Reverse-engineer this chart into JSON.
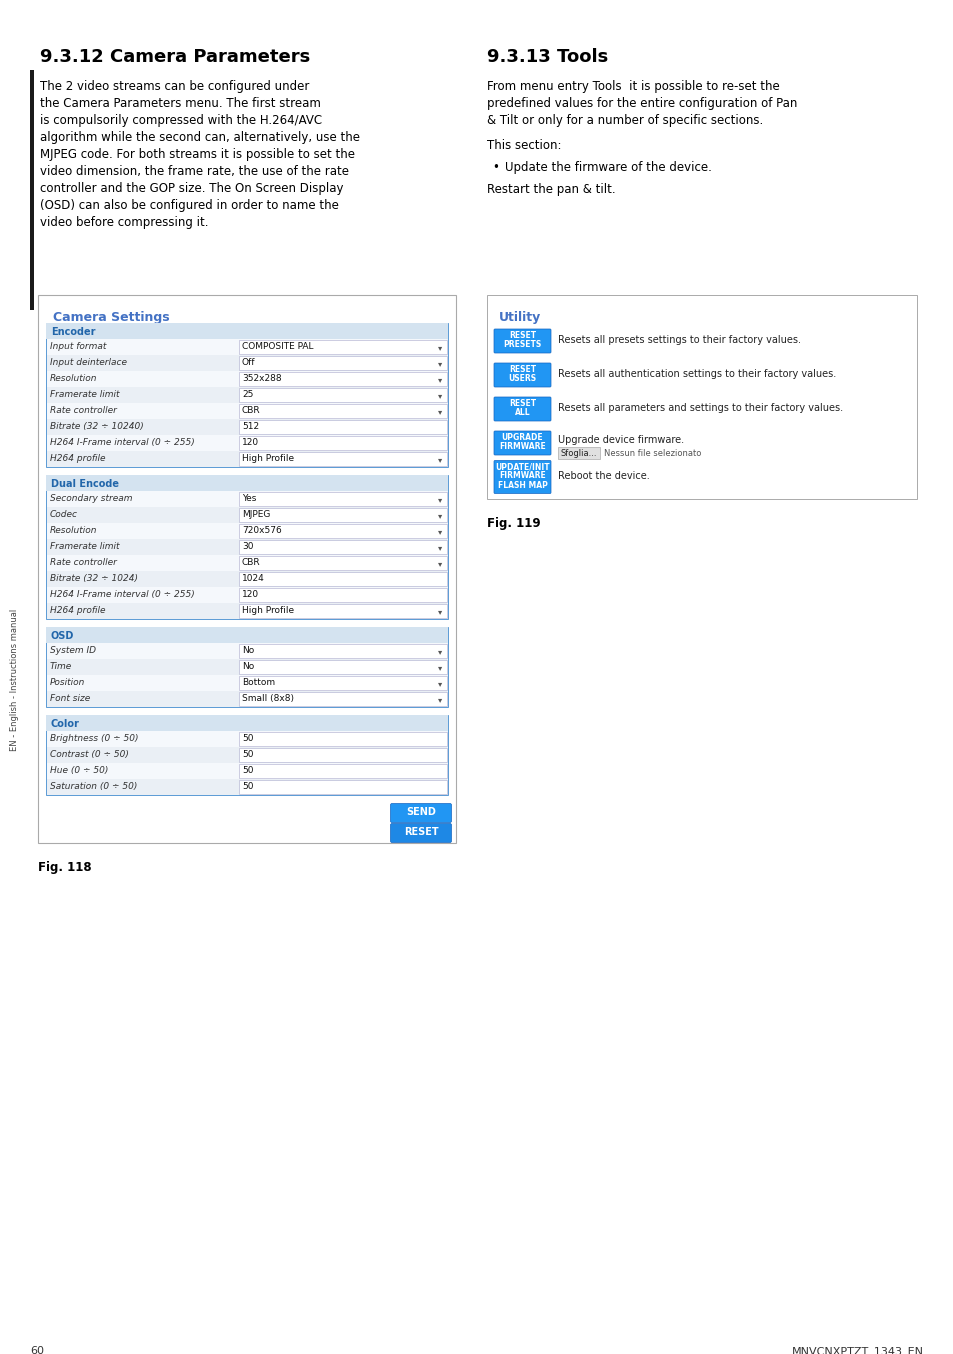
{
  "page_bg": "#ffffff",
  "sidebar_text": "EN - English - Instructions manual",
  "section1_title": "9.3.12 Camera Parameters",
  "section1_body": [
    "The 2 video streams can be configured under",
    "the Camera Parameters menu. The first stream",
    "is compulsorily compressed with the H.264/AVC",
    "algorithm while the second can, alternatively, use the",
    "MJPEG code. For both streams it is possible to set the",
    "video dimension, the frame rate, the use of the rate",
    "controller and the GOP size. The On Screen Display",
    "(OSD) can also be configured in order to name the",
    "video before compressing it."
  ],
  "section2_title": "9.3.13 Tools",
  "section2_p1": [
    "From menu entry Tools  it is possible to re-set the",
    "predefined values for the entire configuration of Pan",
    "& Tilt or only for a number of specific sections."
  ],
  "section2_p2": "This section:",
  "section2_bullet": "Update the firmware of the device.",
  "section2_p3": "Restart the pan & tilt.",
  "fig118_label": "Fig. 118",
  "fig119_label": "Fig. 119",
  "page_number": "60",
  "footer_text": "MNVCNXPTZT_1343_EN",
  "cam_settings_title": "Camera Settings",
  "cam_settings_title_color": "#4472C4",
  "encoder_label": "Encoder",
  "encoder_fields": [
    [
      "Input format",
      "COMPOSITE PAL",
      true
    ],
    [
      "Input deinterlace",
      "Off",
      true
    ],
    [
      "Resolution",
      "352x288",
      true
    ],
    [
      "Framerate limit",
      "25",
      true
    ],
    [
      "Rate controller",
      "CBR",
      true
    ],
    [
      "Bitrate (32 ÷ 10240)",
      "512",
      false
    ],
    [
      "H264 I-Frame interval (0 ÷ 255)",
      "120",
      false
    ],
    [
      "H264 profile",
      "High Profile",
      true
    ]
  ],
  "dual_encode_label": "Dual Encode",
  "dual_fields": [
    [
      "Secondary stream",
      "Yes",
      true
    ],
    [
      "Codec",
      "MJPEG",
      true
    ],
    [
      "Resolution",
      "720x576",
      true
    ],
    [
      "Framerate limit",
      "30",
      true
    ],
    [
      "Rate controller",
      "CBR",
      true
    ],
    [
      "Bitrate (32 ÷ 1024)",
      "1024",
      false
    ],
    [
      "H264 I-Frame interval (0 ÷ 255)",
      "120",
      false
    ],
    [
      "H264 profile",
      "High Profile",
      true
    ]
  ],
  "osd_label": "OSD",
  "osd_fields": [
    [
      "System ID",
      "No",
      true
    ],
    [
      "Time",
      "No",
      true
    ],
    [
      "Position",
      "Bottom",
      true
    ],
    [
      "Font size",
      "Small (8x8)",
      true
    ]
  ],
  "color_label": "Color",
  "color_fields": [
    [
      "Brightness (0 ÷ 50)",
      "50",
      false
    ],
    [
      "Contrast (0 ÷ 50)",
      "50",
      false
    ],
    [
      "Hue (0 ÷ 50)",
      "50",
      false
    ],
    [
      "Saturation (0 ÷ 50)",
      "50",
      false
    ]
  ],
  "utility_title": "Utility",
  "utility_title_color": "#4472C4",
  "utility_rows": [
    {
      "btn": "RESET\nPRESETS",
      "desc": "Resets all presets settings to their factory values.",
      "special": null
    },
    {
      "btn": "RESET\nUSERS",
      "desc": "Resets all authentication settings to their factory values.",
      "special": null
    },
    {
      "btn": "RESET\nALL",
      "desc": "Resets all parameters and settings to their factory values.",
      "special": null
    },
    {
      "btn": "UPGRADE\nFIRMWARE",
      "desc": "Upgrade device firmware.",
      "special": "sfoglia"
    },
    {
      "btn": "UPDATE/INIT\nFIRMWARE\nFLASH MAP",
      "desc": "Reboot the device.",
      "special": null
    }
  ],
  "btn_color": "#2196F3",
  "send_color": "#2196F3",
  "reset_color": "#1E88E5"
}
